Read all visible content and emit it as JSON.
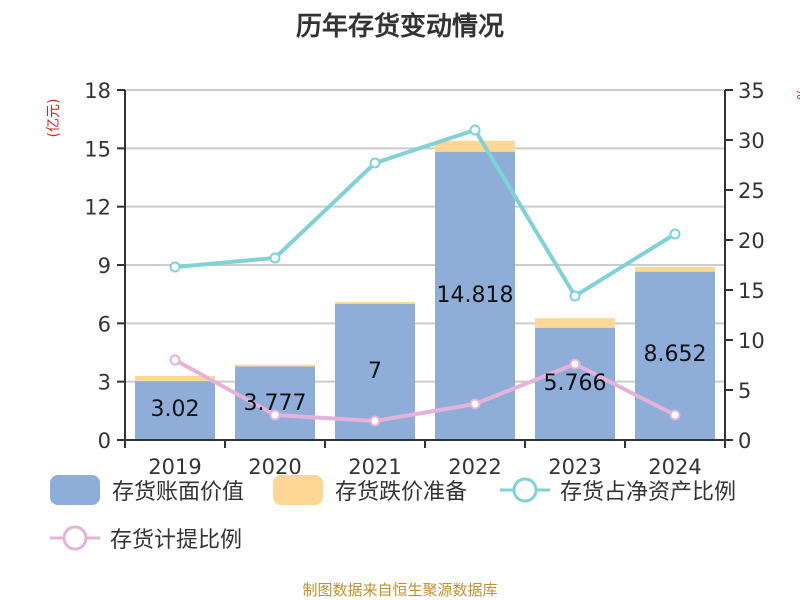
{
  "title": "历年存货变动情况",
  "footer": "制图数据来自恒生聚源数据库",
  "left_axis_unit": "(亿元)",
  "right_axis_unit": "%",
  "colors": {
    "book_value": "#8eadd9",
    "impairment": "#fdd793",
    "ratio_net_assets": "#7fd3d6",
    "provision_ratio": "#e5b3d9",
    "footer": "#c0922a",
    "axis_unit": "#e02020"
  },
  "legend": [
    {
      "label": "存货账面价值",
      "type": "bar"
    },
    {
      "label": "存货跌价准备",
      "type": "bar"
    },
    {
      "label": "存货占净资产比例",
      "type": "line"
    },
    {
      "label": "存货计提比例",
      "type": "line"
    }
  ],
  "chart_data": {
    "type": "bar",
    "title": "历年存货变动情况",
    "categories": [
      "2019",
      "2020",
      "2021",
      "2022",
      "2023",
      "2024"
    ],
    "left_axis": {
      "label": "(亿元)",
      "ticks": [
        "0",
        "3",
        "6",
        "9",
        "12",
        "15",
        "18"
      ],
      "range": [
        0,
        18
      ]
    },
    "right_axis": {
      "label": "%",
      "ticks": [
        "0",
        "5",
        "10",
        "15",
        "20",
        "25",
        "30",
        "35"
      ],
      "range": [
        0,
        35
      ]
    },
    "series": [
      {
        "name": "存货账面价值",
        "type": "bar",
        "stack": "inv",
        "axis": "left",
        "values": [
          3.02,
          3.777,
          7,
          14.818,
          5.766,
          8.652
        ],
        "labels": [
          "3.02",
          "3.777",
          "7",
          "14.818",
          "5.766",
          "8.652"
        ]
      },
      {
        "name": "存货跌价准备",
        "type": "bar",
        "stack": "inv",
        "axis": "left",
        "values": [
          0.27,
          0.09,
          0.1,
          0.57,
          0.5,
          0.25
        ]
      },
      {
        "name": "存货占净资产比例",
        "type": "line",
        "axis": "right",
        "values": [
          17.3,
          18.2,
          27.7,
          31.0,
          14.4,
          20.6
        ]
      },
      {
        "name": "存货计提比例",
        "type": "line",
        "axis": "right",
        "values": [
          8.0,
          2.5,
          1.9,
          3.6,
          7.6,
          2.5
        ]
      }
    ],
    "grid": true,
    "legend_position": "bottom"
  }
}
